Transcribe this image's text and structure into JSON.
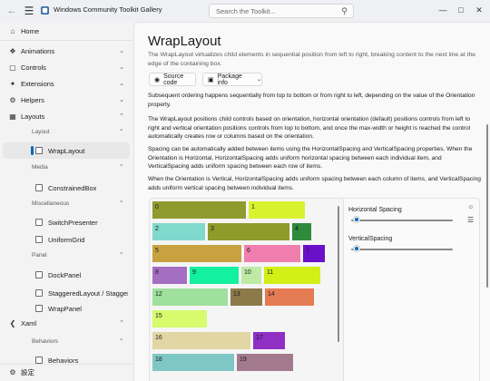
{
  "window": {
    "title": "Windows Community Toolkit Gallery",
    "search_placeholder": "Search the Toolkit..."
  },
  "sidebar": {
    "items": [
      {
        "label": "Home",
        "icon": "home-icon"
      },
      {
        "label": "Animations",
        "icon": "animations-icon"
      },
      {
        "label": "Controls",
        "icon": "controls-icon"
      },
      {
        "label": "Extensions",
        "icon": "extensions-icon"
      },
      {
        "label": "Helpers",
        "icon": "helpers-icon"
      },
      {
        "label": "Layouts",
        "icon": "layouts-icon"
      },
      {
        "label": "Xaml",
        "icon": "xaml-icon"
      }
    ],
    "groups": {
      "layout": "Layout",
      "media": "Media",
      "miscellaneous": "Miscellaneous",
      "panel": "Panel",
      "behaviors": "Behaviors"
    },
    "sub_items": {
      "wraplayout": "WrapLayout",
      "constrainedbox": "ConstrainedBox",
      "switchpresenter": "SwitchPresenter",
      "uniformgrid": "UniformGrid",
      "dockpanel": "DockPanel",
      "staggeredlayout": "StaggeredLayout / StaggeredPanel",
      "wrappanel": "WrapPanel",
      "behaviors": "Behaviors"
    },
    "settings": "設定"
  },
  "page": {
    "title": "WrapLayout",
    "description": "The WrapLayout virtualizes child elements in sequential position from left to right, breaking content to the next line at the edge of the containing box.",
    "source_button": "Source code",
    "package_button": "Package info",
    "para1": "Subsequent ordering happens sequentially from top to bottom or from right to left, depending on the value of the Orientation property.",
    "para2": "The WrapLayout positions child controls based on orientation, horizontal orientation (default) positions controls from left to right and vertical orientation positions controls from top to bottom, and once the max-width or height is reached the control automatically creates row or columns based on the orientation.",
    "para3": "Spacing can be automatically added between items using the HorizontalSpacing and VerticalSpacing properties. When the Orientation is Horizontal, HorizontalSpacing adds uniform horizontal spacing between each individual item, and VerticalSpacing adds uniform spacing between each row of items.",
    "para4": "When the Orientation is Vertical, HorizontalSpacing adds uniform spacing between each column of items, and VerticalSpacing adds uniform vertical spacing between individual items."
  },
  "demo": {
    "tiles": [
      {
        "label": "0",
        "color": "#8f9a2f"
      },
      {
        "label": "1",
        "color": "#d8f32e"
      },
      {
        "label": "2",
        "color": "#80d9cc"
      },
      {
        "label": "3",
        "color": "#8e9b2a"
      },
      {
        "label": "4",
        "color": "#2f8a3c"
      },
      {
        "label": "5",
        "color": "#c9a240"
      },
      {
        "label": "6",
        "color": "#f07fb0"
      },
      {
        "label": "7",
        "color": "#6a10c9"
      },
      {
        "label": "8",
        "color": "#a46ec2"
      },
      {
        "label": "9",
        "color": "#12f0a0"
      },
      {
        "label": "10",
        "color": "#bfeaa6"
      },
      {
        "label": "11",
        "color": "#d2ef16"
      },
      {
        "label": "12",
        "color": "#9fe09e"
      },
      {
        "label": "13",
        "color": "#8c7a4a"
      },
      {
        "label": "14",
        "color": "#e57b52"
      },
      {
        "label": "15",
        "color": "#d6fb6c"
      },
      {
        "label": "16",
        "color": "#e2d6a5"
      },
      {
        "label": "17",
        "color": "#8f2fc4"
      },
      {
        "label": "18",
        "color": "#7fc7c4"
      },
      {
        "label": "19",
        "color": "#a37a8e"
      }
    ],
    "horizontal_spacing_label": "Horizontal Spacing",
    "vertical_spacing_label": "VerticalSpacing",
    "horizontal_spacing_fraction": 0.05,
    "vertical_spacing_fraction": 0.05
  }
}
